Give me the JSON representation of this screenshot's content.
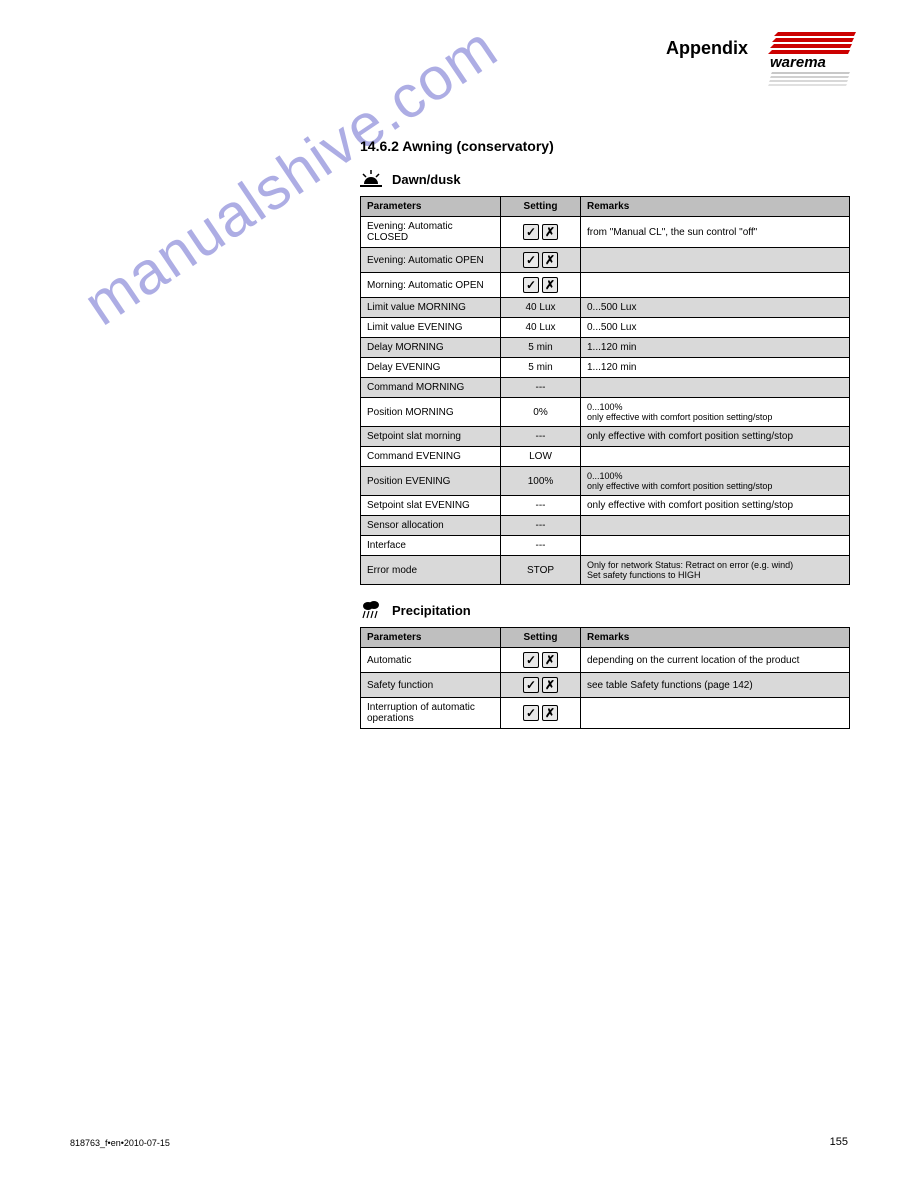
{
  "page": {
    "header_title": "Appendix",
    "number": "155",
    "doc_ref": "818763_f•en•2010-07-15"
  },
  "section": {
    "title": "14.6.2 Awning (conservatory)",
    "dawn": {
      "icon": "dawn",
      "label": "Dawn/dusk",
      "columns": [
        "Parameters",
        "Setting",
        "Remarks"
      ],
      "rows": [
        {
          "param": "Evening: Automatic CLOSED",
          "type": "check",
          "remark": "from \"Manual CL\", the sun control \"off\"",
          "shaded": false
        },
        {
          "param": "Evening: Automatic OPEN",
          "type": "check",
          "remark": "",
          "shaded": true
        },
        {
          "param": "Morning: Automatic OPEN",
          "type": "check",
          "remark": "",
          "shaded": false
        },
        {
          "param": "Limit value MORNING",
          "type": "val",
          "value": "40 Lux",
          "remark": "0...500 Lux",
          "shaded": true
        },
        {
          "param": "Limit value EVENING",
          "type": "val",
          "value": "40 Lux",
          "remark": "0...500 Lux",
          "shaded": false
        },
        {
          "param": "Delay MORNING",
          "type": "val",
          "value": "5 min",
          "remark": "1...120 min",
          "shaded": true
        },
        {
          "param": "Delay EVENING",
          "type": "val",
          "value": "5 min",
          "remark": "1...120 min",
          "shaded": false
        },
        {
          "param": "Command MORNING",
          "type": "val",
          "value": "---",
          "remark": "",
          "shaded": true
        },
        {
          "param": "Position MORNING",
          "type": "val",
          "value": "0%",
          "remark": "0...100%\nonly effective with comfort position setting/stop",
          "shaded": false,
          "multiline_remark": true
        },
        {
          "param": "Setpoint slat morning",
          "type": "val",
          "value": "---",
          "remark": "only effective with comfort position setting/stop",
          "shaded": true
        },
        {
          "param": "Command EVENING",
          "type": "val",
          "value": "LOW",
          "remark": "",
          "shaded": false
        },
        {
          "param": "Position EVENING",
          "type": "val",
          "value": "100%",
          "remark": "0...100%\nonly effective with comfort position setting/stop",
          "shaded": true,
          "multiline_remark": true
        },
        {
          "param": "Setpoint slat EVENING",
          "type": "val",
          "value": "---",
          "remark": "only effective with comfort position setting/stop",
          "shaded": false
        },
        {
          "param": "Sensor allocation",
          "type": "val",
          "value": "---",
          "remark": "",
          "shaded": true
        },
        {
          "param": "Interface",
          "type": "val",
          "value": "---",
          "remark": "",
          "shaded": false
        },
        {
          "param": "Error mode",
          "type": "val",
          "value": "STOP",
          "remark": "Only for network Status: Retract on error (e.g. wind)\nSet safety functions to HIGH",
          "shaded": true,
          "multiline_remark": true
        }
      ]
    },
    "precip": {
      "icon": "rain",
      "label": "Precipitation",
      "columns": [
        "Parameters",
        "Setting",
        "Remarks"
      ],
      "rows": [
        {
          "param": "Automatic",
          "type": "check",
          "remark": "depending on the current location of the product",
          "shaded": false
        },
        {
          "param": "Safety function",
          "type": "check",
          "remark": "see table Safety functions (page 142)",
          "shaded": true
        },
        {
          "param": "Interruption of automatic operations",
          "type": "check",
          "remark": "",
          "shaded": false
        }
      ]
    }
  },
  "watermark": {
    "text": "manualshive.com"
  },
  "colors": {
    "header_grey": "#bfbfbf",
    "row_shade": "#d9d9d9",
    "border": "#000000",
    "watermark": "#6b6bcf",
    "logo_red": "#cc0000",
    "logo_grey": "#b0b0b0"
  }
}
